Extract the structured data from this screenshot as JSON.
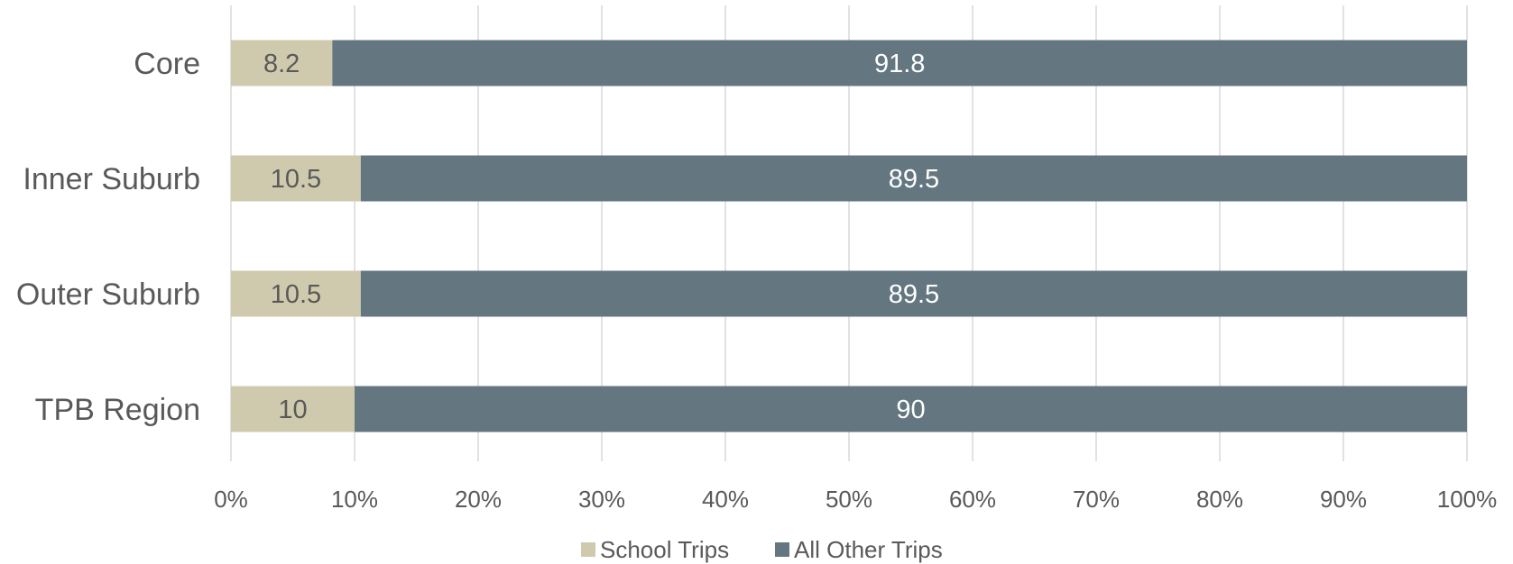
{
  "chart_data": {
    "type": "bar",
    "orientation": "horizontal",
    "stacked": "percent",
    "categories": [
      "Core",
      "Inner Suburb",
      "Outer Suburb",
      "TPB Region"
    ],
    "series": [
      {
        "name": "School Trips",
        "values": [
          8.2,
          10.5,
          10.5,
          10
        ],
        "labels": [
          "8.2",
          "10.5",
          "10.5",
          "10"
        ],
        "color": "#cfcaae",
        "label_color": "#595959"
      },
      {
        "name": "All Other Trips",
        "values": [
          91.8,
          89.5,
          89.5,
          90
        ],
        "labels": [
          "91.8",
          "89.5",
          "89.5",
          "90"
        ],
        "color": "#647781",
        "label_color": "#ffffff"
      }
    ],
    "xticks": [
      "0%",
      "10%",
      "20%",
      "30%",
      "40%",
      "50%",
      "60%",
      "70%",
      "80%",
      "90%",
      "100%"
    ],
    "xlim": [
      0,
      100
    ],
    "grid": true,
    "legend_position": "bottom",
    "title": "",
    "xlabel": "",
    "ylabel": ""
  }
}
